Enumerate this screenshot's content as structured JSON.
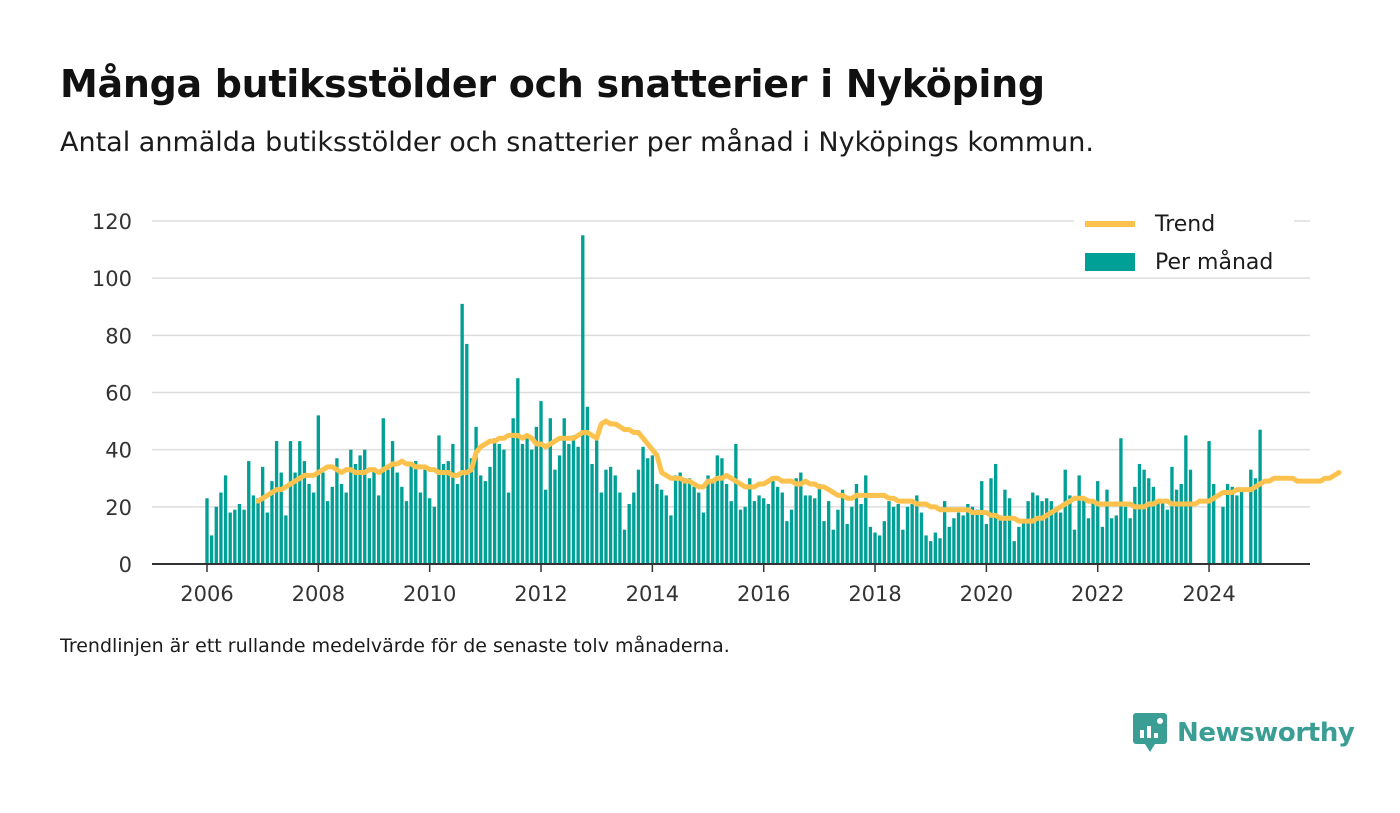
{
  "title": "Många butiksstölder och snatterier i Nyköping",
  "subtitle": "Antal anmälda butiksstölder och snatterier per månad i Nyköpings kommun.",
  "footnote": "Trendlinjen är ett rullande medelvärde för de senaste tolv månaderna.",
  "brand": {
    "name": "Newsworthy",
    "color": "#3a9e95",
    "icon": "newsworthy-logo-icon"
  },
  "colors": {
    "bar": "#00a096",
    "trend": "#fcc24d",
    "grid": "#dddddd",
    "axis": "#333333"
  },
  "chart_data": {
    "type": "bar",
    "x_start": "2006-01",
    "x_ticks": [
      "2006",
      "2008",
      "2010",
      "2012",
      "2014",
      "2016",
      "2018",
      "2020",
      "2022",
      "2024"
    ],
    "y_ticks": [
      0,
      20,
      40,
      60,
      80,
      100,
      120
    ],
    "ylim": [
      0,
      120
    ],
    "grid": true,
    "legend_position": "top-right",
    "series": [
      {
        "name": "Per månad",
        "kind": "bar",
        "values": [
          23,
          10,
          20,
          25,
          31,
          18,
          19,
          21,
          19,
          36,
          24,
          23,
          34,
          18,
          29,
          43,
          32,
          17,
          43,
          32,
          43,
          36,
          28,
          25,
          52,
          32,
          22,
          27,
          37,
          28,
          25,
          40,
          35,
          38,
          40,
          30,
          33,
          24,
          51,
          33,
          43,
          32,
          27,
          22,
          35,
          36,
          25,
          33,
          23,
          20,
          45,
          35,
          36,
          42,
          28,
          91,
          77,
          37,
          48,
          31,
          29,
          34,
          44,
          42,
          40,
          25,
          51,
          65,
          42,
          45,
          40,
          48,
          57,
          26,
          51,
          33,
          38,
          51,
          42,
          45,
          41,
          115,
          55,
          35,
          44,
          25,
          33,
          34,
          31,
          25,
          12,
          21,
          25,
          33,
          41,
          37,
          38,
          28,
          26,
          24,
          17,
          31,
          32,
          30,
          30,
          27,
          25,
          18,
          31,
          29,
          38,
          37,
          28,
          22,
          42,
          19,
          20,
          30,
          22,
          24,
          23,
          21,
          29,
          27,
          25,
          15,
          19,
          30,
          32,
          24,
          24,
          23,
          28,
          15,
          22,
          12,
          19,
          26,
          14,
          20,
          28,
          21,
          31,
          13,
          11,
          10,
          15,
          22,
          20,
          21,
          12,
          20,
          21,
          24,
          18,
          10,
          8,
          11,
          9,
          22,
          13,
          16,
          18,
          17,
          21,
          20,
          19,
          29,
          14,
          30,
          35,
          17,
          26,
          23,
          8,
          13,
          15,
          22,
          25,
          24,
          22,
          23,
          22,
          19,
          18,
          33,
          24,
          12,
          31,
          23,
          16,
          22,
          29,
          13,
          26,
          16,
          17,
          44,
          20,
          16,
          27,
          35,
          33,
          30,
          27,
          22,
          22,
          19,
          34,
          26,
          28,
          45,
          33,
          null,
          null,
          null,
          43,
          28,
          null,
          20,
          28,
          27,
          24,
          26,
          null,
          33,
          30,
          47
        ]
      },
      {
        "name": "Trend",
        "kind": "line",
        "start_index": 11,
        "values": [
          22,
          23,
          24,
          25,
          26,
          26,
          27,
          28,
          29,
          30,
          31,
          31,
          31,
          32,
          33,
          34,
          34,
          33,
          32,
          33,
          33,
          32,
          32,
          32,
          33,
          33,
          32,
          33,
          34,
          35,
          35,
          36,
          35,
          35,
          34,
          34,
          34,
          33,
          33,
          32,
          32,
          32,
          31,
          31,
          32,
          32,
          33,
          39,
          41,
          42,
          43,
          43,
          44,
          44,
          45,
          45,
          45,
          44,
          45,
          44,
          42,
          42,
          41,
          42,
          43,
          44,
          44,
          44,
          44,
          45,
          46,
          46,
          45,
          44,
          49,
          50,
          49,
          49,
          48,
          47,
          47,
          46,
          46,
          44,
          42,
          40,
          38,
          32,
          31,
          30,
          30,
          30,
          29,
          29,
          28,
          27,
          27,
          29,
          29,
          30,
          30,
          31,
          30,
          29,
          28,
          27,
          27,
          27,
          28,
          28,
          29,
          30,
          30,
          29,
          29,
          29,
          28,
          28,
          29,
          28,
          28,
          27,
          27,
          26,
          25,
          24,
          24,
          23,
          23,
          24,
          24,
          24,
          24,
          24,
          24,
          24,
          23,
          23,
          22,
          22,
          22,
          22,
          21,
          21,
          21,
          20,
          20,
          19,
          19,
          19,
          19,
          19,
          19,
          19,
          18,
          18,
          18,
          18,
          17,
          17,
          16,
          16,
          16,
          16,
          15,
          15,
          15,
          15,
          16,
          16,
          17,
          18,
          19,
          20,
          21,
          22,
          23,
          23,
          23,
          22,
          22,
          21,
          21,
          21,
          21,
          21,
          21,
          21,
          21,
          20,
          20,
          20,
          21,
          21,
          22,
          22,
          22,
          21,
          21,
          21,
          21,
          21,
          21,
          22,
          22,
          22,
          23,
          24,
          25,
          25,
          25,
          26,
          26,
          26,
          26,
          27,
          28,
          29,
          29,
          30,
          30,
          30,
          30,
          30,
          29,
          29,
          29,
          29,
          29,
          29,
          30,
          30,
          31,
          32
        ]
      }
    ]
  }
}
